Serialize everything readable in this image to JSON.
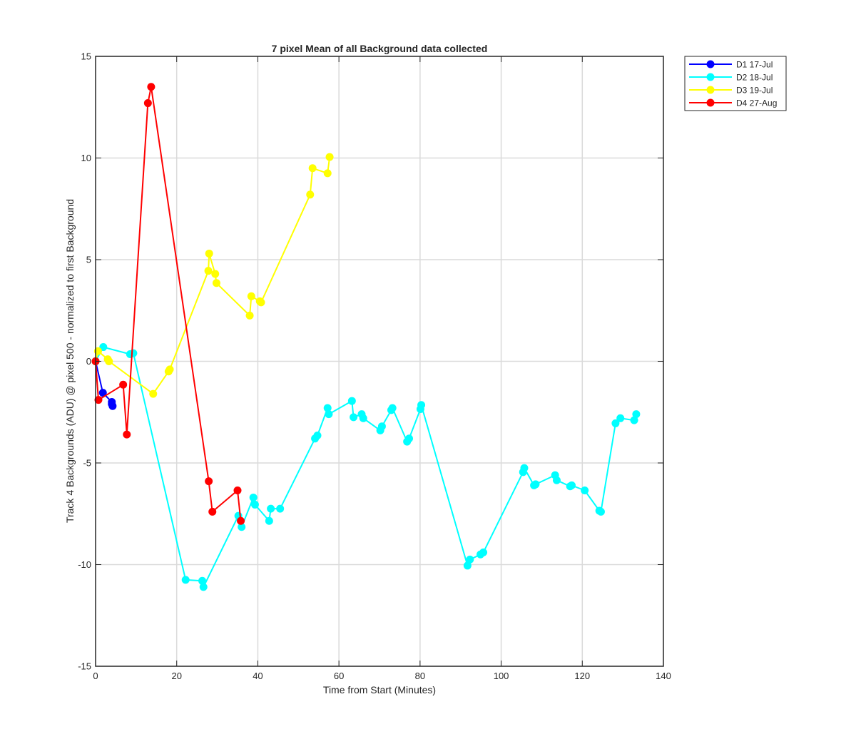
{
  "chart_data": {
    "type": "line",
    "title": "7 pixel Mean of all Background data collected",
    "xlabel": "Time from Start (Minutes)",
    "ylabel": "Track 4 Backgrounds (ADU) @ pixel 500 - normalized to first Background",
    "xlim": [
      0,
      140
    ],
    "ylim": [
      -15,
      15
    ],
    "xticks": [
      0,
      20,
      40,
      60,
      80,
      100,
      120,
      140
    ],
    "yticks": [
      -15,
      -10,
      -5,
      0,
      5,
      10,
      15
    ],
    "xtick_labels": [
      "0",
      "20",
      "40",
      "60",
      "80",
      "100",
      "120",
      "140"
    ],
    "ytick_labels": [
      "-15",
      "-10",
      "-5",
      "0",
      "5",
      "10",
      "15"
    ],
    "grid": true,
    "legend_position": "outside-top-right",
    "series": [
      {
        "name": "D1 17-Jul",
        "color": "#0000ff",
        "x": [
          0,
          1.8,
          4.0,
          4.2,
          4.0
        ],
        "y": [
          0,
          -1.55,
          -2.0,
          -2.2,
          -2.1
        ]
      },
      {
        "name": "D2 18-Jul",
        "color": "#00ffff",
        "x": [
          0,
          1.9,
          8.5,
          9.3,
          22.2,
          26.3,
          26.6,
          35.2,
          36.0,
          38.9,
          39.3,
          42.8,
          43.2,
          45.5,
          54.1,
          54.7,
          57.2,
          57.5,
          63.2,
          63.6,
          65.6,
          66.0,
          70.2,
          70.6,
          72.9,
          73.2,
          76.8,
          77.3,
          80.1,
          80.3,
          91.7,
          92.3,
          94.9,
          95.6,
          105.4,
          105.7,
          108.1,
          108.5,
          113.3,
          113.7,
          117.0,
          117.4,
          120.6,
          124.2,
          124.6,
          128.2,
          129.4,
          132.8,
          133.3
        ],
        "y": [
          0,
          0.7,
          0.35,
          0.4,
          -10.75,
          -10.8,
          -11.1,
          -7.6,
          -8.15,
          -6.7,
          -7.05,
          -7.85,
          -7.25,
          -7.25,
          -3.8,
          -3.65,
          -2.3,
          -2.6,
          -1.95,
          -2.75,
          -2.6,
          -2.8,
          -3.4,
          -3.2,
          -2.4,
          -2.3,
          -3.95,
          -3.8,
          -2.35,
          -2.15,
          -10.05,
          -9.75,
          -9.5,
          -9.4,
          -5.45,
          -5.25,
          -6.1,
          -6.05,
          -5.6,
          -5.85,
          -6.15,
          -6.1,
          -6.35,
          -7.35,
          -7.4,
          -3.05,
          -2.8,
          -2.9,
          -2.6
        ]
      },
      {
        "name": "D3 19-Jul",
        "color": "#ffff00",
        "x": [
          0,
          0.6,
          3.0,
          3.3,
          14.2,
          18.0,
          18.3,
          27.8,
          28.0,
          29.5,
          29.8,
          38.0,
          38.4,
          40.5,
          40.8,
          52.9,
          53.5,
          57.2,
          57.7
        ],
        "y": [
          0,
          0.5,
          0.1,
          0.0,
          -1.6,
          -0.5,
          -0.4,
          4.45,
          5.3,
          4.3,
          3.85,
          2.25,
          3.2,
          2.95,
          2.9,
          8.2,
          9.5,
          9.25,
          10.05
        ]
      },
      {
        "name": "D4 27-Aug",
        "color": "#ff0000",
        "x": [
          0,
          0.7,
          6.8,
          7.7,
          12.9,
          13.7,
          27.9,
          28.8,
          35.0,
          35.8
        ],
        "y": [
          0,
          -1.9,
          -1.15,
          -3.6,
          12.7,
          13.5,
          -5.9,
          -7.4,
          -6.35,
          -7.85
        ]
      }
    ]
  }
}
